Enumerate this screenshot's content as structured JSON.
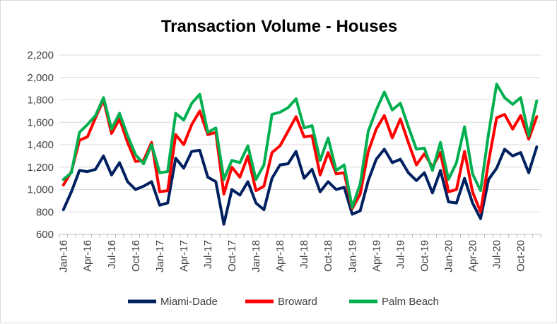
{
  "chart_data": {
    "type": "line",
    "title": "Transaction Volume - Houses",
    "xlabel": "",
    "ylabel": "",
    "ylim": [
      600,
      2200
    ],
    "yticks": [
      600,
      800,
      1000,
      1200,
      1400,
      1600,
      1800,
      2000,
      2200
    ],
    "ytick_labels": [
      "600",
      "800",
      "1,000",
      "1,200",
      "1,400",
      "1,600",
      "1,800",
      "2,000",
      "2,200"
    ],
    "grid": true,
    "legend_position": "bottom",
    "x": [
      "Jan-16",
      "Feb-16",
      "Mar-16",
      "Apr-16",
      "May-16",
      "Jun-16",
      "Jul-16",
      "Aug-16",
      "Sep-16",
      "Oct-16",
      "Nov-16",
      "Dec-16",
      "Jan-17",
      "Feb-17",
      "Mar-17",
      "Apr-17",
      "May-17",
      "Jun-17",
      "Jul-17",
      "Aug-17",
      "Sep-17",
      "Oct-17",
      "Nov-17",
      "Dec-17",
      "Jan-18",
      "Feb-18",
      "Mar-18",
      "Apr-18",
      "May-18",
      "Jun-18",
      "Jul-18",
      "Aug-18",
      "Sep-18",
      "Oct-18",
      "Nov-18",
      "Dec-18",
      "Jan-19",
      "Feb-19",
      "Mar-19",
      "Apr-19",
      "May-19",
      "Jun-19",
      "Jul-19",
      "Aug-19",
      "Sep-19",
      "Oct-19",
      "Nov-19",
      "Dec-19",
      "Jan-20",
      "Feb-20",
      "Mar-20",
      "Apr-20",
      "May-20",
      "Jun-20",
      "Jul-20",
      "Aug-20",
      "Sep-20",
      "Oct-20",
      "Nov-20",
      "Dec-20"
    ],
    "x_tick_labels": [
      "Jan-16",
      "Apr-16",
      "Jul-16",
      "Oct-16",
      "Jan-17",
      "Apr-17",
      "Jul-17",
      "Oct-17",
      "Jan-18",
      "Apr-18",
      "Jul-18",
      "Oct-18",
      "Jan-19",
      "Apr-19",
      "Jul-19",
      "Oct-19",
      "Jan-20",
      "Apr-20",
      "Jul-20",
      "Oct-20"
    ],
    "series": [
      {
        "name": "Miami-Dade",
        "color": "#002060",
        "values": [
          820,
          980,
          1170,
          1160,
          1180,
          1300,
          1130,
          1240,
          1070,
          1000,
          1030,
          1070,
          860,
          880,
          1280,
          1190,
          1340,
          1350,
          1110,
          1070,
          690,
          1000,
          950,
          1070,
          880,
          820,
          1100,
          1220,
          1230,
          1340,
          1100,
          1180,
          980,
          1070,
          1000,
          1020,
          780,
          810,
          1080,
          1270,
          1360,
          1240,
          1270,
          1150,
          1080,
          1150,
          970,
          1170,
          890,
          880,
          1100,
          880,
          740,
          1090,
          1190,
          1360,
          1300,
          1330,
          1150,
          1380
        ]
      },
      {
        "name": "Broward",
        "color": "#ff0000",
        "values": [
          1040,
          1160,
          1440,
          1470,
          1640,
          1800,
          1500,
          1630,
          1420,
          1250,
          1260,
          1420,
          980,
          990,
          1490,
          1400,
          1580,
          1700,
          1490,
          1510,
          960,
          1200,
          1110,
          1300,
          990,
          1030,
          1330,
          1390,
          1520,
          1650,
          1470,
          1480,
          1130,
          1330,
          1140,
          1150,
          830,
          960,
          1340,
          1540,
          1660,
          1460,
          1630,
          1420,
          1220,
          1320,
          1200,
          1330,
          980,
          1000,
          1340,
          980,
          800,
          1250,
          1640,
          1670,
          1540,
          1660,
          1450,
          1650
        ]
      },
      {
        "name": "Palm Beach",
        "color": "#00b050",
        "values": [
          1090,
          1150,
          1510,
          1580,
          1660,
          1820,
          1540,
          1680,
          1480,
          1310,
          1230,
          1400,
          1150,
          1160,
          1680,
          1620,
          1770,
          1850,
          1510,
          1550,
          1090,
          1260,
          1240,
          1390,
          1090,
          1220,
          1670,
          1690,
          1730,
          1810,
          1550,
          1570,
          1260,
          1460,
          1170,
          1220,
          840,
          1050,
          1520,
          1710,
          1870,
          1710,
          1770,
          1560,
          1360,
          1370,
          1170,
          1420,
          1090,
          1240,
          1560,
          1140,
          990,
          1500,
          1940,
          1820,
          1760,
          1820,
          1480,
          1790
        ]
      }
    ]
  }
}
